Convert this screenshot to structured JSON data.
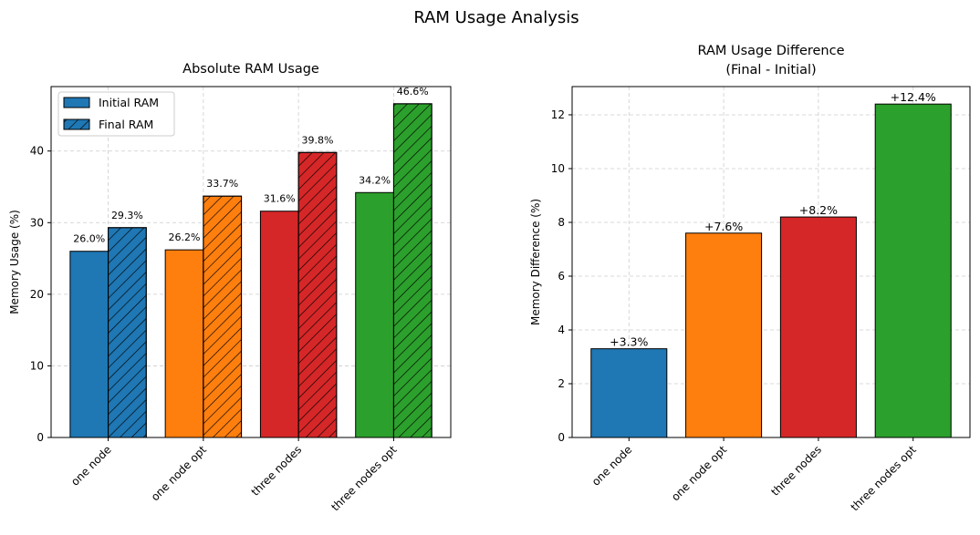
{
  "suptitle": "RAM Usage Analysis",
  "colors": {
    "one node": "#1f77b4",
    "one node opt": "#ff7f0e",
    "three nodes": "#d62728",
    "three nodes opt": "#2ca02c"
  },
  "chart_data": [
    {
      "type": "bar",
      "title": "Absolute RAM Usage",
      "xlabel": "",
      "ylabel": "Memory Usage (%)",
      "categories": [
        "one node",
        "one node opt",
        "three nodes",
        "three nodes opt"
      ],
      "series": [
        {
          "name": "Initial RAM",
          "values": [
            26.0,
            26.2,
            31.6,
            34.2
          ],
          "labels": [
            "26.0%",
            "26.2%",
            "31.6%",
            "34.2%"
          ],
          "hatch": "none"
        },
        {
          "name": "Final RAM",
          "values": [
            29.3,
            33.7,
            39.8,
            46.6
          ],
          "labels": [
            "29.3%",
            "33.7%",
            "39.8%",
            "46.6%"
          ],
          "hatch": "diagonal"
        }
      ],
      "ylim": [
        0,
        49
      ],
      "yticks": [
        0,
        10,
        20,
        30,
        40
      ],
      "grid": true,
      "legend": "top-left"
    },
    {
      "type": "bar",
      "title": "RAM Usage Difference\n(Final - Initial)",
      "title_lines": [
        "RAM Usage Difference",
        "(Final - Initial)"
      ],
      "xlabel": "",
      "ylabel": "Memory Difference (%)",
      "categories": [
        "one node",
        "one node opt",
        "three nodes",
        "three nodes opt"
      ],
      "values": [
        3.3,
        7.6,
        8.2,
        12.4
      ],
      "labels": [
        "+3.3%",
        "+7.6%",
        "+8.2%",
        "+12.4%"
      ],
      "ylim": [
        0,
        13.05
      ],
      "yticks": [
        0,
        2,
        4,
        6,
        8,
        10,
        12
      ],
      "grid": true
    }
  ]
}
